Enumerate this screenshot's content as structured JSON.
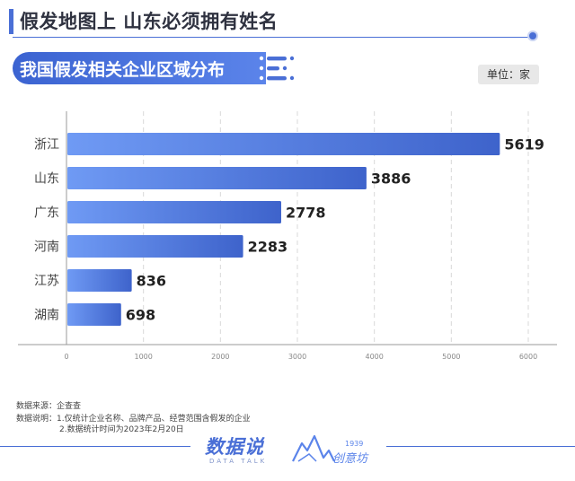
{
  "header": {
    "title": "假发地图上 山东必须拥有姓名",
    "subtitle": "我国假发相关企业区域分布",
    "unit": "单位：家"
  },
  "chart_data": {
    "type": "bar",
    "orientation": "horizontal",
    "categories": [
      "浙江",
      "山东",
      "广东",
      "河南",
      "江苏",
      "湖南"
    ],
    "values": [
      5619,
      3886,
      2778,
      2283,
      836,
      698
    ],
    "xlim": [
      0,
      6000
    ],
    "xticks": [
      0,
      1000,
      2000,
      3000,
      4000,
      5000,
      6000
    ],
    "grid": "vertical dashed",
    "colors": {
      "bar_start": "#6f9af4",
      "bar_end": "#3e63cb",
      "label": "#222222"
    }
  },
  "footer": {
    "source": "数据来源：企查查",
    "note_1": "数据说明：1.仅统计企业名称、品牌产品、经营范围含假发的企业",
    "note_2": "2.数据统计时间为2023年2月20日"
  },
  "branding": {
    "logo_main": "数据说",
    "logo_sub": "DATA TALK",
    "logo2_year": "1939",
    "logo2_name": "创意坊"
  },
  "colors": {
    "accent": "#4a6fd6"
  }
}
